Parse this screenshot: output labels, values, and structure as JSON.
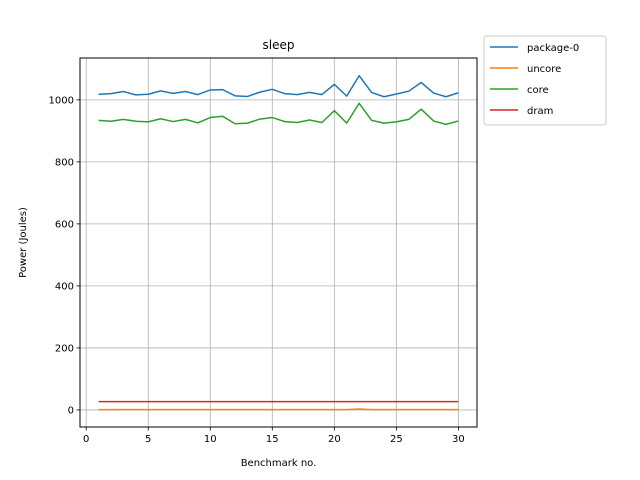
{
  "chart_data": {
    "type": "line",
    "title": "sleep",
    "xlabel": "Benchmark no.",
    "ylabel": "Power (Joules)",
    "xlim": [
      -0.5,
      31.5
    ],
    "ylim": [
      -55,
      1135
    ],
    "xticks": [
      0,
      5,
      10,
      15,
      20,
      25,
      30
    ],
    "yticks": [
      0,
      200,
      400,
      600,
      800,
      1000
    ],
    "grid": true,
    "legend_position": "outside-top-right",
    "x": [
      1,
      2,
      3,
      4,
      5,
      6,
      7,
      8,
      9,
      10,
      11,
      12,
      13,
      14,
      15,
      16,
      17,
      18,
      19,
      20,
      21,
      22,
      23,
      24,
      25,
      26,
      27,
      28,
      29,
      30
    ],
    "series": [
      {
        "name": "package-0",
        "color": "#1f77b4",
        "values": [
          1018,
          1020,
          1027,
          1016,
          1018,
          1029,
          1021,
          1027,
          1017,
          1032,
          1033,
          1013,
          1011,
          1025,
          1034,
          1020,
          1017,
          1024,
          1017,
          1050,
          1012,
          1078,
          1024,
          1010,
          1019,
          1028,
          1056,
          1022,
          1010,
          1023
        ]
      },
      {
        "name": "uncore",
        "color": "#ff7f0e",
        "values": [
          1,
          1,
          1,
          1,
          1,
          1,
          1,
          1,
          1,
          1,
          1,
          1,
          1,
          1,
          1,
          1,
          1,
          1,
          1,
          1,
          1,
          3,
          1,
          1,
          1,
          1,
          1,
          1,
          1,
          1
        ]
      },
      {
        "name": "core",
        "color": "#2ca02c",
        "values": [
          934,
          931,
          937,
          931,
          929,
          939,
          930,
          937,
          926,
          943,
          947,
          923,
          925,
          938,
          943,
          930,
          927,
          935,
          927,
          965,
          925,
          989,
          934,
          925,
          929,
          937,
          970,
          932,
          921,
          932
        ]
      },
      {
        "name": "dram",
        "color": "#d62728",
        "values": [
          27,
          27,
          27,
          27,
          27,
          27,
          27,
          27,
          27,
          27,
          27,
          27,
          27,
          27,
          27,
          27,
          27,
          27,
          27,
          27,
          27,
          27,
          27,
          27,
          27,
          27,
          27,
          27,
          27,
          27
        ]
      }
    ]
  }
}
